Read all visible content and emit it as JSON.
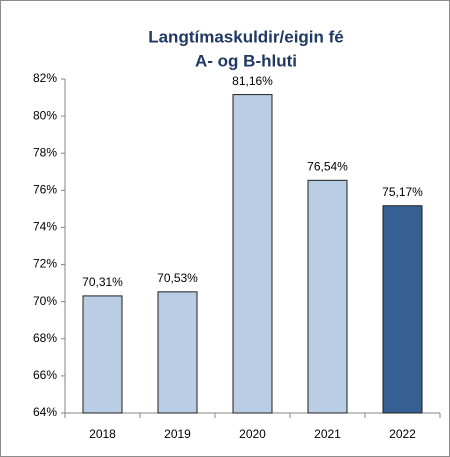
{
  "chart_data": {
    "type": "bar",
    "title": [
      "Langtímaskuldir/eigin fé",
      "A- og B-hluti"
    ],
    "categories": [
      "2018",
      "2019",
      "2020",
      "2021",
      "2022"
    ],
    "values": [
      70.31,
      70.53,
      81.16,
      76.54,
      75.17
    ],
    "value_labels": [
      "70,31%",
      "70,53%",
      "81,16%",
      "76,54%",
      "75,17%"
    ],
    "colors": [
      "#b9cde5",
      "#b9cde5",
      "#b9cde5",
      "#b9cde5",
      "#366092"
    ],
    "ylim": [
      64,
      82
    ],
    "yticks": [
      {
        "value": 64,
        "label": "64%"
      },
      {
        "value": 66,
        "label": "66%"
      },
      {
        "value": 68,
        "label": "68%"
      },
      {
        "value": 70,
        "label": "70%"
      },
      {
        "value": 72,
        "label": "72%"
      },
      {
        "value": 74,
        "label": "74%"
      },
      {
        "value": 76,
        "label": "76%"
      },
      {
        "value": 78,
        "label": "78%"
      },
      {
        "value": 80,
        "label": "80%"
      },
      {
        "value": 82,
        "label": "82%"
      }
    ],
    "grid": false
  }
}
